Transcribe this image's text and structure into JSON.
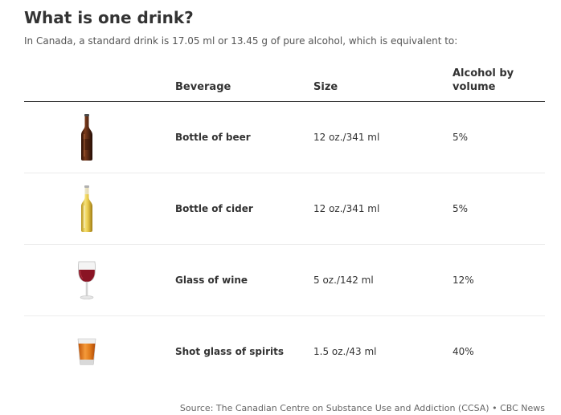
{
  "title": "What is one drink?",
  "subtitle": "In Canada, a standard drink is 17.05 ml or 13.45 g of pure alcohol, which is equivalent to:",
  "table": {
    "headers": {
      "beverage": "Beverage",
      "size": "Size",
      "abv": "Alcohol by volume"
    },
    "rows": [
      {
        "icon": "beer-bottle-icon",
        "beverage": "Bottle of beer",
        "size": "12 oz./341 ml",
        "abv": "5%"
      },
      {
        "icon": "cider-bottle-icon",
        "beverage": "Bottle of cider",
        "size": "12 oz./341 ml",
        "abv": "5%"
      },
      {
        "icon": "wine-glass-icon",
        "beverage": "Glass of wine",
        "size": "5 oz./142 ml",
        "abv": "12%"
      },
      {
        "icon": "shot-glass-icon",
        "beverage": "Shot glass of spirits",
        "size": "1.5 oz./43 ml",
        "abv": "40%"
      }
    ]
  },
  "source": "Source: The Canadian Centre on Substance Use and Addiction (CCSA) • CBC News",
  "colors": {
    "beer": "#5a2a14",
    "cider": "#e8c84a",
    "wine": "#8a1424",
    "spirits": "#e07a1a"
  }
}
